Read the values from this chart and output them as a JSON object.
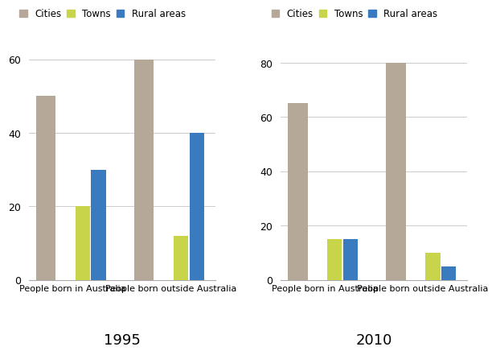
{
  "chart_1995": {
    "title": "1995",
    "categories": [
      "People born in Australia",
      "People born outside Australia"
    ],
    "cities": [
      50,
      60
    ],
    "towns": [
      20,
      12
    ],
    "rural": [
      30,
      40
    ],
    "ylim": [
      0,
      65
    ],
    "yticks": [
      0,
      20,
      40,
      60
    ]
  },
  "chart_2010": {
    "title": "2010",
    "categories": [
      "People born in Australia",
      "People born outside Australia"
    ],
    "cities": [
      65,
      80
    ],
    "towns": [
      15,
      10
    ],
    "rural": [
      15,
      5
    ],
    "ylim": [
      0,
      88
    ],
    "yticks": [
      0,
      20,
      40,
      60,
      80
    ]
  },
  "colors": {
    "cities": "#b5a898",
    "towns": "#c8d44a",
    "rural": "#3a7bbf"
  },
  "legend_labels": [
    "Cities",
    "Towns",
    "Rural areas"
  ],
  "background_color": "#ffffff",
  "title_fontsize": 13,
  "label_fontsize": 8,
  "tick_fontsize": 9,
  "legend_fontsize": 8.5,
  "legend_marker_size": 7
}
